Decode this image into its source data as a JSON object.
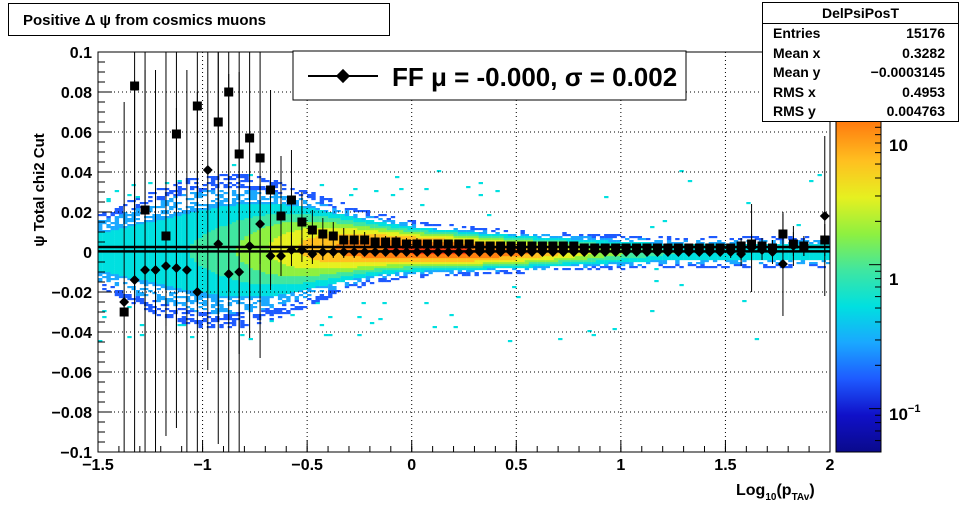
{
  "title": "Positive Δ ψ from cosmics muons",
  "stats": {
    "name": "DelPsiPosT",
    "rows": [
      {
        "label": "Entries",
        "value": "15176"
      },
      {
        "label": "Mean x",
        "value": "0.3282"
      },
      {
        "label": "Mean y",
        "value": "−0.0003145"
      },
      {
        "label": "RMS x",
        "value": "0.4953"
      },
      {
        "label": "RMS y",
        "value": "0.004763"
      }
    ]
  },
  "colors": {
    "profile_marker": "#000000",
    "frame": "#000000",
    "grid": "#000000",
    "palette": [
      "#0a0a8c",
      "#1010c8",
      "#1e5aff",
      "#1aa8ff",
      "#00e0e0",
      "#40e6a0",
      "#8ef040",
      "#e6f020",
      "#ffc020",
      "#ff8010",
      "#ff3a10",
      "#a81000"
    ]
  },
  "chart_data": {
    "type": "heatmap",
    "xlabel": "Log",
    "xlabel_sub": "10",
    "xlabel_rest": "(p",
    "xlabel_sub2": "TAv",
    "xlabel_close": ")",
    "ylabel": "ψ  Total chi2 Cut",
    "xlim": [
      -1.5,
      2
    ],
    "ylim": [
      -0.1,
      0.1
    ],
    "xticks": [
      -1.5,
      -1,
      -0.5,
      0,
      0.5,
      1,
      1.5,
      2
    ],
    "xtick_labels": [
      "−1.5",
      "−1",
      "−0.5",
      "0",
      "0.5",
      "1",
      "1.5",
      "2"
    ],
    "yticks": [
      -0.1,
      -0.08,
      -0.06,
      -0.04,
      -0.02,
      0,
      0.02,
      0.04,
      0.06,
      0.08,
      0.1
    ],
    "ytick_labels": [
      "−0.1",
      "−0.08",
      "−0.06",
      "−0.04",
      "−0.02",
      "0",
      "0.02",
      "0.04",
      "0.06",
      "0.08",
      "0.1"
    ],
    "grid": true,
    "colorbar": {
      "scale": "log",
      "range": [
        0.05,
        30
      ],
      "ticks": [
        0.1,
        1,
        10
      ],
      "tick_labels": {
        "b0": "10",
        "b0_exp": "−1",
        "b1": "1",
        "b2": "10"
      }
    },
    "legend": {
      "position": "top-center",
      "text": "FF μ = -0.000, σ =   0.002"
    },
    "fit_lines": [
      0.0025,
      0.0003
    ],
    "profile_square": [
      {
        "x": -1.375,
        "y": -0.03
      },
      {
        "x": -1.325,
        "y": 0.083,
        "e": 0.1
      },
      {
        "x": -1.275,
        "y": 0.021,
        "e": 0.1
      },
      {
        "x": -1.175,
        "y": 0.008,
        "e": 0.1
      },
      {
        "x": -1.125,
        "y": 0.059,
        "e": 0.1
      },
      {
        "x": -1.025,
        "y": 0.073,
        "e": 0.1
      },
      {
        "x": -0.925,
        "y": 0.065,
        "e": 0.1
      },
      {
        "x": -0.875,
        "y": 0.08,
        "e": 0.1
      },
      {
        "x": -0.825,
        "y": 0.049,
        "e": 0.1
      },
      {
        "x": -0.775,
        "y": 0.057,
        "e": 0.1
      },
      {
        "x": -0.725,
        "y": 0.047,
        "e": 0.1
      },
      {
        "x": -0.675,
        "y": 0.031,
        "e": 0.05
      },
      {
        "x": -0.625,
        "y": 0.018,
        "e": 0.03
      },
      {
        "x": -0.575,
        "y": 0.026,
        "e": 0.025
      },
      {
        "x": -0.525,
        "y": 0.015,
        "e": 0.015
      },
      {
        "x": -0.475,
        "y": 0.011,
        "e": 0.01
      },
      {
        "x": -0.425,
        "y": 0.009,
        "e": 0.008
      },
      {
        "x": -0.375,
        "y": 0.008,
        "e": 0.007
      },
      {
        "x": -0.325,
        "y": 0.006,
        "e": 0.006
      },
      {
        "x": -0.275,
        "y": 0.006,
        "e": 0.005
      },
      {
        "x": -0.225,
        "y": 0.006,
        "e": 0.004
      },
      {
        "x": -0.175,
        "y": 0.005,
        "e": 0.004
      },
      {
        "x": -0.125,
        "y": 0.005,
        "e": 0.003
      },
      {
        "x": -0.075,
        "y": 0.005,
        "e": 0.003
      },
      {
        "x": -0.025,
        "y": 0.004,
        "e": 0.003
      },
      {
        "x": 0.025,
        "y": 0.004,
        "e": 0.003
      },
      {
        "x": 0.075,
        "y": 0.004,
        "e": 0.002
      },
      {
        "x": 0.125,
        "y": 0.004,
        "e": 0.002
      },
      {
        "x": 0.175,
        "y": 0.004,
        "e": 0.002
      },
      {
        "x": 0.225,
        "y": 0.004,
        "e": 0.002
      },
      {
        "x": 0.275,
        "y": 0.004,
        "e": 0.002
      },
      {
        "x": 0.325,
        "y": 0.003,
        "e": 0.002
      },
      {
        "x": 0.375,
        "y": 0.003,
        "e": 0.002
      },
      {
        "x": 0.425,
        "y": 0.003,
        "e": 0.002
      },
      {
        "x": 0.475,
        "y": 0.003,
        "e": 0.002
      },
      {
        "x": 0.525,
        "y": 0.003,
        "e": 0.002
      },
      {
        "x": 0.575,
        "y": 0.003,
        "e": 0.002
      },
      {
        "x": 0.625,
        "y": 0.003,
        "e": 0.002
      },
      {
        "x": 0.675,
        "y": 0.003,
        "e": 0.002
      },
      {
        "x": 0.725,
        "y": 0.003,
        "e": 0.002
      },
      {
        "x": 0.775,
        "y": 0.003,
        "e": 0.002
      },
      {
        "x": 0.825,
        "y": 0.002,
        "e": 0.002
      },
      {
        "x": 0.875,
        "y": 0.002,
        "e": 0.002
      },
      {
        "x": 0.925,
        "y": 0.002,
        "e": 0.002
      },
      {
        "x": 0.975,
        "y": 0.002,
        "e": 0.002
      },
      {
        "x": 1.025,
        "y": 0.002,
        "e": 0.002
      },
      {
        "x": 1.075,
        "y": 0.002,
        "e": 0.002
      },
      {
        "x": 1.125,
        "y": 0.002,
        "e": 0.002
      },
      {
        "x": 1.175,
        "y": 0.002,
        "e": 0.002
      },
      {
        "x": 1.225,
        "y": 0.002,
        "e": 0.002
      },
      {
        "x": 1.275,
        "y": 0.002,
        "e": 0.002
      },
      {
        "x": 1.325,
        "y": 0.002,
        "e": 0.002
      },
      {
        "x": 1.375,
        "y": 0.002,
        "e": 0.002
      },
      {
        "x": 1.425,
        "y": 0.002,
        "e": 0.002
      },
      {
        "x": 1.475,
        "y": 0.002,
        "e": 0.002
      },
      {
        "x": 1.525,
        "y": 0.002,
        "e": 0.002
      },
      {
        "x": 1.575,
        "y": 0.003,
        "e": 0.004
      },
      {
        "x": 1.625,
        "y": 0.004,
        "e": 0.005
      },
      {
        "x": 1.675,
        "y": 0.003,
        "e": 0.004
      },
      {
        "x": 1.725,
        "y": 0.002,
        "e": 0.004
      },
      {
        "x": 1.775,
        "y": 0.009,
        "e": 0.01
      },
      {
        "x": 1.825,
        "y": 0.004,
        "e": 0.006
      },
      {
        "x": 1.875,
        "y": 0.003,
        "e": 0.005
      },
      {
        "x": 1.975,
        "y": 0.006,
        "e": 0.008
      }
    ],
    "profile_diamond": [
      {
        "x": -1.375,
        "y": -0.025,
        "e": 0.1
      },
      {
        "x": -1.325,
        "y": -0.014,
        "e": 0.1
      },
      {
        "x": -1.275,
        "y": -0.009,
        "e": 0.1
      },
      {
        "x": -1.225,
        "y": -0.009,
        "e": 0.1
      },
      {
        "x": -1.175,
        "y": -0.007,
        "e": 0.03
      },
      {
        "x": -1.125,
        "y": -0.008,
        "e": 0.08
      },
      {
        "x": -1.075,
        "y": -0.009,
        "e": 0.1
      },
      {
        "x": -1.025,
        "y": -0.02,
        "e": 0.1
      },
      {
        "x": -0.975,
        "y": 0.041,
        "e": 0.1
      },
      {
        "x": -0.925,
        "y": 0.004,
        "e": 0.1
      },
      {
        "x": -0.875,
        "y": -0.011,
        "e": 0.1
      },
      {
        "x": -0.825,
        "y": -0.01,
        "e": 0.1
      },
      {
        "x": -0.775,
        "y": 0.003,
        "e": 0.03
      },
      {
        "x": -0.725,
        "y": 0.014,
        "e": 0.02
      },
      {
        "x": -0.675,
        "y": -0.002,
        "e": 0.015
      },
      {
        "x": -0.625,
        "y": -0.002,
        "e": 0.01
      },
      {
        "x": -0.575,
        "y": 0.001,
        "e": 0.008
      },
      {
        "x": -0.525,
        "y": 0.001,
        "e": 0.006
      },
      {
        "x": -0.475,
        "y": -0.001,
        "e": 0.005
      },
      {
        "x": -0.425,
        "y": 0.0,
        "e": 0.004
      },
      {
        "x": -0.375,
        "y": 0.0,
        "e": 0.003
      },
      {
        "x": -0.325,
        "y": 0.0,
        "e": 0.003
      },
      {
        "x": -0.275,
        "y": 0.0,
        "e": 0.003
      },
      {
        "x": -0.225,
        "y": 0.0,
        "e": 0.002
      },
      {
        "x": -0.175,
        "y": 0.0,
        "e": 0.002
      },
      {
        "x": -0.125,
        "y": 0.0,
        "e": 0.002
      },
      {
        "x": -0.075,
        "y": 0.0,
        "e": 0.002
      },
      {
        "x": -0.025,
        "y": 0.0,
        "e": 0.002
      },
      {
        "x": 0.025,
        "y": 0.0,
        "e": 0.002
      },
      {
        "x": 0.075,
        "y": 0.0,
        "e": 0.002
      },
      {
        "x": 0.125,
        "y": 0.0,
        "e": 0.002
      },
      {
        "x": 0.175,
        "y": 0.0,
        "e": 0.002
      },
      {
        "x": 0.225,
        "y": 0.0,
        "e": 0.002
      },
      {
        "x": 0.275,
        "y": 0.0,
        "e": 0.002
      },
      {
        "x": 0.325,
        "y": 0.0,
        "e": 0.002
      },
      {
        "x": 0.375,
        "y": 0.0,
        "e": 0.002
      },
      {
        "x": 0.425,
        "y": 0.0,
        "e": 0.002
      },
      {
        "x": 0.475,
        "y": 0.0,
        "e": 0.002
      },
      {
        "x": 0.525,
        "y": 0.0,
        "e": 0.002
      },
      {
        "x": 0.575,
        "y": 0.0,
        "e": 0.002
      },
      {
        "x": 0.625,
        "y": 0.0,
        "e": 0.002
      },
      {
        "x": 0.675,
        "y": 0.0,
        "e": 0.002
      },
      {
        "x": 0.725,
        "y": 0.0,
        "e": 0.002
      },
      {
        "x": 0.775,
        "y": 0.0,
        "e": 0.002
      },
      {
        "x": 0.825,
        "y": 0.0,
        "e": 0.002
      },
      {
        "x": 0.875,
        "y": 0.0,
        "e": 0.002
      },
      {
        "x": 0.925,
        "y": 0.0,
        "e": 0.002
      },
      {
        "x": 0.975,
        "y": 0.0,
        "e": 0.002
      },
      {
        "x": 1.025,
        "y": 0.0,
        "e": 0.002
      },
      {
        "x": 1.075,
        "y": 0.0,
        "e": 0.002
      },
      {
        "x": 1.125,
        "y": 0.0,
        "e": 0.002
      },
      {
        "x": 1.175,
        "y": 0.0,
        "e": 0.002
      },
      {
        "x": 1.225,
        "y": 0.0,
        "e": 0.002
      },
      {
        "x": 1.275,
        "y": 0.0,
        "e": 0.002
      },
      {
        "x": 1.325,
        "y": 0.0,
        "e": 0.002
      },
      {
        "x": 1.375,
        "y": 0.0,
        "e": 0.002
      },
      {
        "x": 1.425,
        "y": 0.0,
        "e": 0.002
      },
      {
        "x": 1.475,
        "y": 0.0,
        "e": 0.002
      },
      {
        "x": 1.525,
        "y": 0.0,
        "e": 0.003
      },
      {
        "x": 1.575,
        "y": -0.001,
        "e": 0.006
      },
      {
        "x": 1.625,
        "y": 0.002,
        "e": 0.022
      },
      {
        "x": 1.675,
        "y": 0.001,
        "e": 0.005
      },
      {
        "x": 1.725,
        "y": 0.0,
        "e": 0.006
      },
      {
        "x": 1.775,
        "y": -0.006,
        "e": 0.026
      },
      {
        "x": 1.825,
        "y": 0.003,
        "e": 0.01
      },
      {
        "x": 1.875,
        "y": 0.002,
        "e": 0.004
      },
      {
        "x": 1.975,
        "y": 0.018,
        "e": 0.04
      }
    ]
  }
}
